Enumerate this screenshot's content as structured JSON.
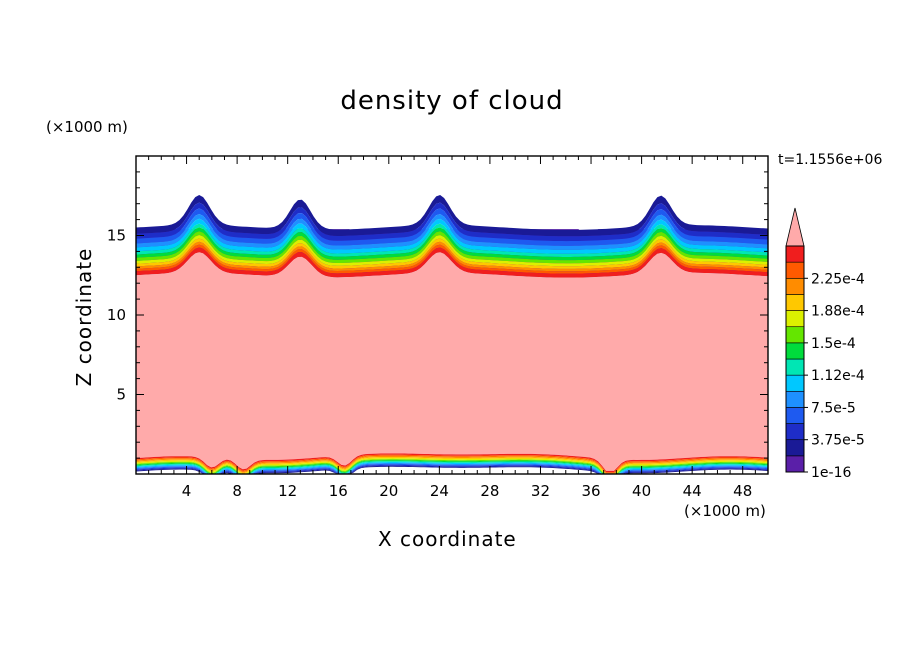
{
  "chart_data": {
    "type": "heatmap",
    "title": "density of cloud",
    "xlabel": "X coordinate",
    "ylabel": "Z coordinate",
    "x_unit_label": "(×1000 m)",
    "y_unit_label": "(×1000 m)",
    "time_label": "t=1.1556e+06",
    "xlim": [
      0,
      50
    ],
    "ylim": [
      0,
      20
    ],
    "x_ticks": [
      "4",
      "8",
      "12",
      "16",
      "20",
      "24",
      "28",
      "32",
      "36",
      "40",
      "44",
      "48"
    ],
    "x_tick_values": [
      4,
      8,
      12,
      16,
      20,
      24,
      28,
      32,
      36,
      40,
      44,
      48
    ],
    "y_ticks": [
      "5",
      "10",
      "15"
    ],
    "y_tick_values": [
      5,
      10,
      15
    ],
    "colorbar": {
      "labels": [
        "2.25e-4",
        "1.88e-4",
        "1.5e-4",
        "1.12e-4",
        "7.5e-5",
        "3.75e-5",
        "1e-16"
      ],
      "levels": [
        1e-16,
        1.875e-05,
        3.75e-05,
        5.625e-05,
        7.5e-05,
        9.375e-05,
        0.000112,
        0.00013125,
        0.00015,
        0.00016875,
        0.000188,
        0.00020625,
        0.000225,
        0.00024375
      ],
      "colors": [
        "#5a1fa8",
        "#1a1a96",
        "#1e2dc8",
        "#1e5af0",
        "#1e90ff",
        "#00c8ff",
        "#00e6b4",
        "#00dc3c",
        "#64e600",
        "#dcf000",
        "#ffc800",
        "#ff8c00",
        "#ff5a00",
        "#f01e1e"
      ],
      "over_color": "#ffaaaa"
    },
    "saturated_region": {
      "z_bottom": 1.0,
      "z_top": 12.8,
      "color": "#ffaaaa"
    },
    "cloud_top": {
      "z": 15.4
    },
    "upper_bumps_x": [
      5.0,
      13.0,
      24.0,
      41.5
    ],
    "lower_dips_x": [
      6.0,
      8.5,
      16.5,
      37.5
    ]
  }
}
